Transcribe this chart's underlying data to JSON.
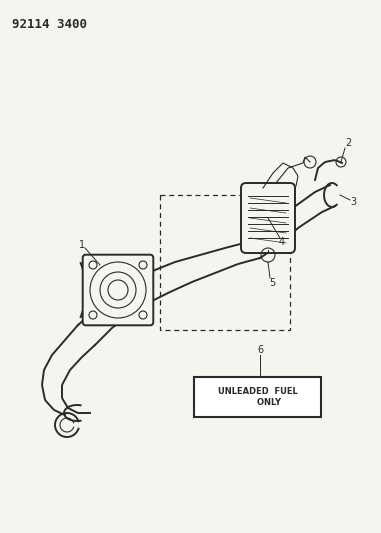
{
  "title_text": "92114 3400",
  "background_color": "#f5f5f0",
  "line_color": "#2a2a2a",
  "fig_width": 3.81,
  "fig_height": 5.33,
  "dpi": 100,
  "label_fontsize": 7,
  "title_fontsize": 9
}
